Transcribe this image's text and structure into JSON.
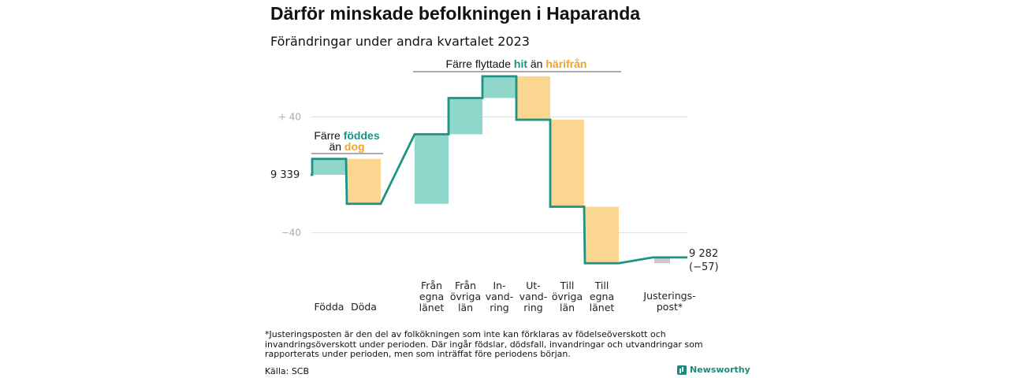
{
  "title": "Därför minskade befolkningen i Haparanda",
  "subtitle": "Förändringar under andra kvartalet 2023",
  "annotations": {
    "births": {
      "line1_pre": "Färre ",
      "line1_hl": "föddes",
      "line2_pre": "än ",
      "line2_hl": "dog"
    },
    "migration": {
      "pre": "Färre flyttade ",
      "hl1": "hit",
      "mid": " än ",
      "hl2": "härifrån"
    }
  },
  "chart_data": {
    "type": "waterfall",
    "title": "Därför minskade befolkningen i Haparanda",
    "subtitle": "Förändringar under andra kvartalet 2023",
    "start_value": 9339,
    "end_value": 9282,
    "start_label": "9 339",
    "end_label": "9 282",
    "end_change_label": "(−57)",
    "ylim": [
      -60,
      72
    ],
    "yticks": [
      {
        "value": 40,
        "label": "+  40"
      },
      {
        "value": -40,
        "label": "−40"
      }
    ],
    "grid": true,
    "steps": [
      {
        "category": [
          "Födda"
        ],
        "change": 11,
        "kind": "inflow"
      },
      {
        "category": [
          "Döda"
        ],
        "change": -31,
        "kind": "outflow"
      },
      {
        "category": [
          "Från",
          "egna",
          "länet"
        ],
        "change": 48,
        "kind": "inflow"
      },
      {
        "category": [
          "Från",
          "övriga",
          "län"
        ],
        "change": 25,
        "kind": "inflow"
      },
      {
        "category": [
          "In-",
          "vand-",
          "ring"
        ],
        "change": 15,
        "kind": "inflow"
      },
      {
        "category": [
          "Ut-",
          "vand-",
          "ring"
        ],
        "change": -30,
        "kind": "outflow"
      },
      {
        "category": [
          "Till",
          "övriga",
          "län"
        ],
        "change": -60,
        "kind": "outflow"
      },
      {
        "category": [
          "Till",
          "egna",
          "länet"
        ],
        "change": -39,
        "kind": "outflow"
      },
      {
        "category": [
          "Justerings-",
          "post*"
        ],
        "change": 4,
        "kind": "adjustment"
      }
    ],
    "colors": {
      "inflow": "#8fd6cb",
      "outflow": "#fad691",
      "adjustment": "#c9c9c9",
      "line": "#1c9384"
    }
  },
  "footnote": "*Justeringsposten är den del av folkökningen som inte kan förklaras av födelseöverskott och invandringsöverskott under perioden. Där ingår födslar, dödsfall, invandringar och utvandringar som rapporterats under perioden, men som inträffat före periodens början.",
  "source": "Källa: SCB",
  "brand": "Newsworthy"
}
